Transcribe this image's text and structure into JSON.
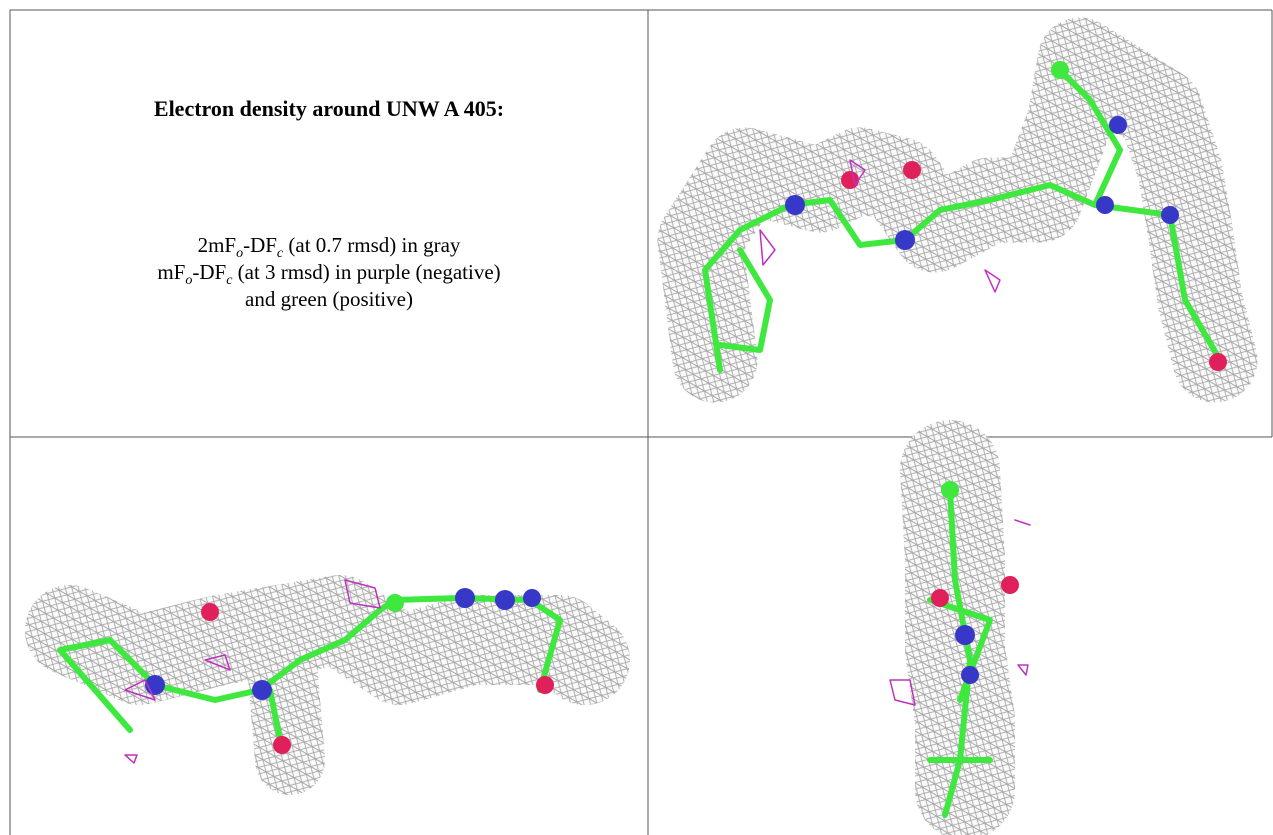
{
  "caption": {
    "title": "Electron density around UNW A 405:",
    "lines": [
      {
        "parts": [
          "2mF",
          "o",
          "-DF",
          "c",
          " (at 0.7 rmsd) in gray"
        ]
      },
      {
        "parts": [
          "mF",
          "o",
          "-DF",
          "c",
          " (at 3 rmsd) in purple (negative)"
        ]
      },
      {
        "parts": [
          "and green (positive)"
        ]
      }
    ]
  }
}
